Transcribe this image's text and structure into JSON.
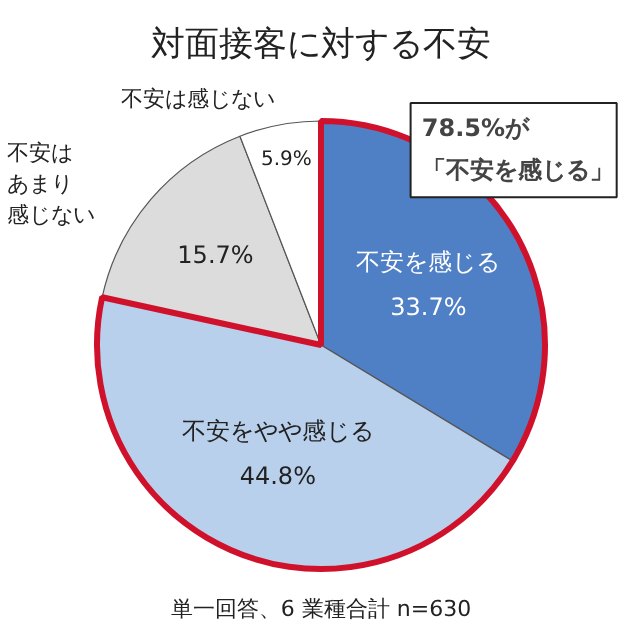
{
  "chart_data": {
    "type": "pie",
    "title": "対面接客に対する不安",
    "categories": [
      "不安を感じる",
      "不安をやや感じる",
      "不安はあまり感じない",
      "不安は感じない"
    ],
    "values": [
      33.7,
      44.8,
      15.7,
      5.9
    ],
    "colors": [
      "#4f7fc4",
      "#b9d0ec",
      "#dcdcdc",
      "#ffffff"
    ],
    "value_labels": [
      "33.7%",
      "44.8%",
      "15.7%",
      "5.9%"
    ],
    "annotations": [
      "78.5%が",
      "「不安を感じる」",
      "単一回答、6 業種合計 n=630"
    ]
  }
}
